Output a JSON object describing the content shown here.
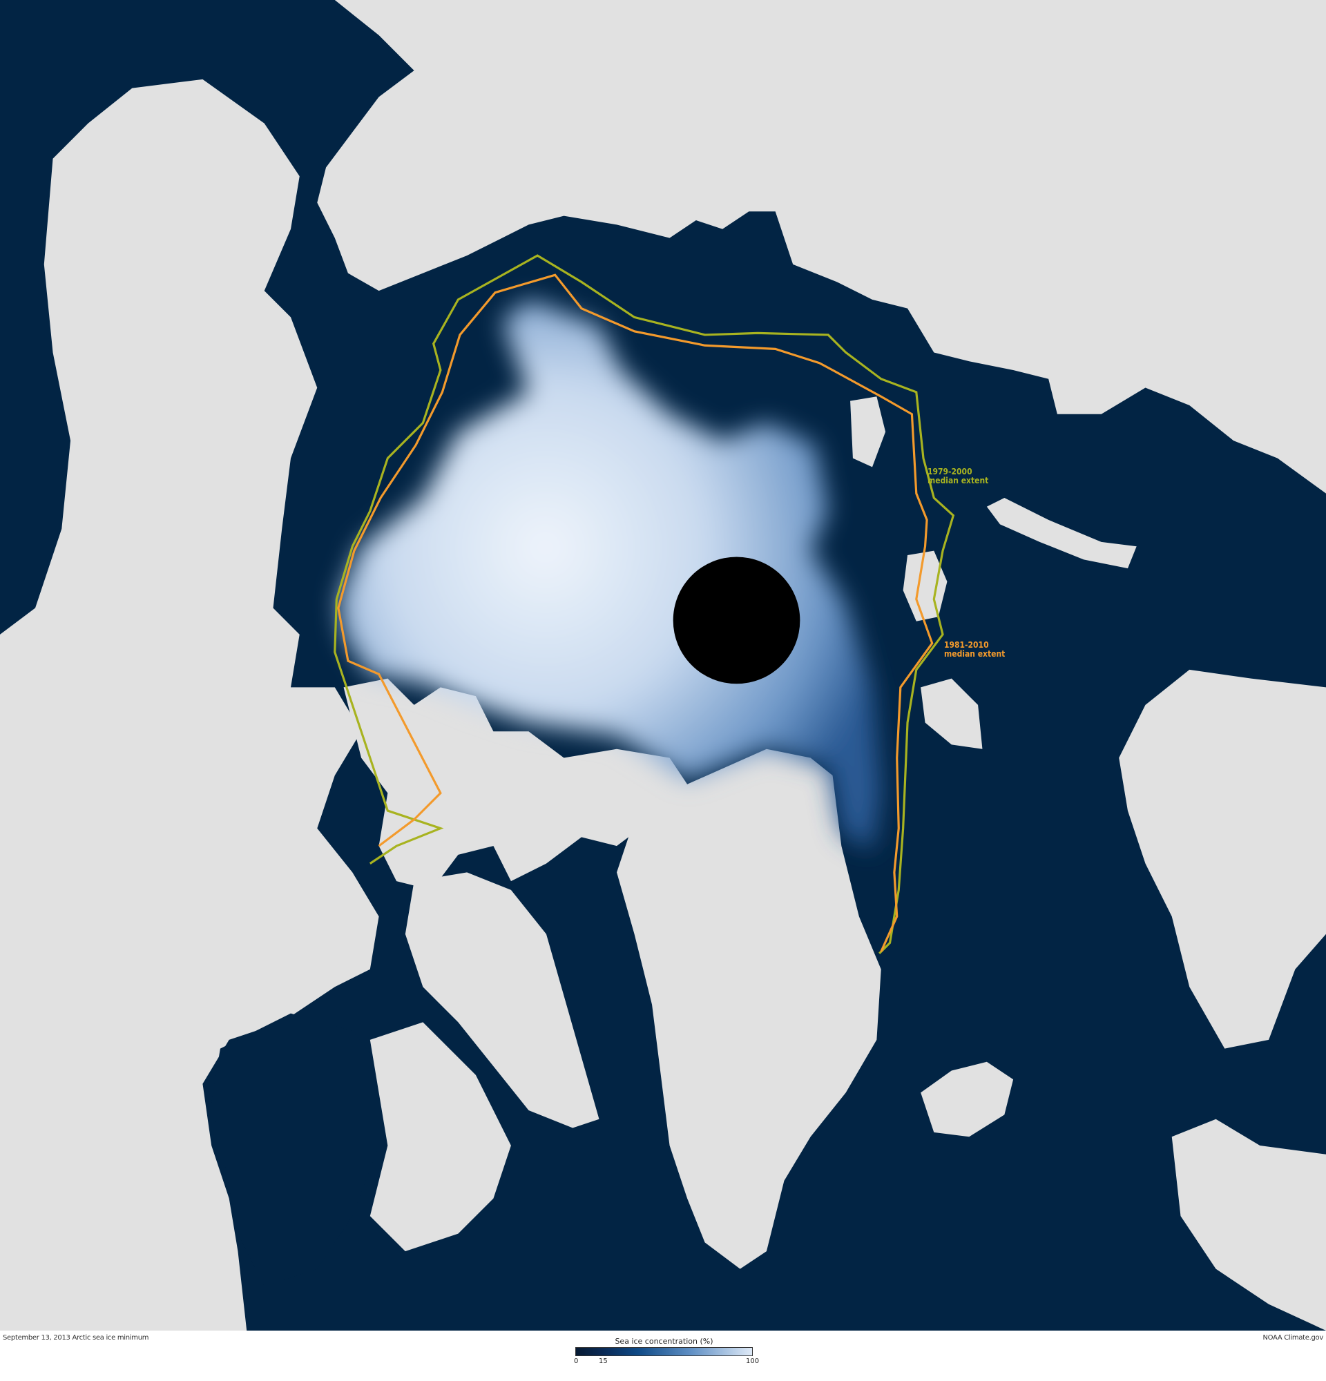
{
  "map": {
    "colors": {
      "ocean": "#022444",
      "land": "#e1e1e1",
      "ice_high": "#f2f7fd",
      "ice_low": "#1d4e8a",
      "pole_hole": "#000000",
      "median_1979_2000": "#a8b320",
      "median_1981_2010": "#f39a2c"
    },
    "annotations": [
      {
        "line1": "1979-2000",
        "line2": "median extent"
      },
      {
        "line1": "1981-2010",
        "line2": "median extent"
      }
    ]
  },
  "footer": {
    "caption": "September 13, 2013 Arctic sea ice minimum",
    "credit": "NOAA Climate.gov"
  },
  "legend": {
    "title": "Sea ice concentration (%)",
    "ticks": [
      "0",
      "15",
      "100"
    ],
    "range": [
      0,
      100
    ]
  }
}
